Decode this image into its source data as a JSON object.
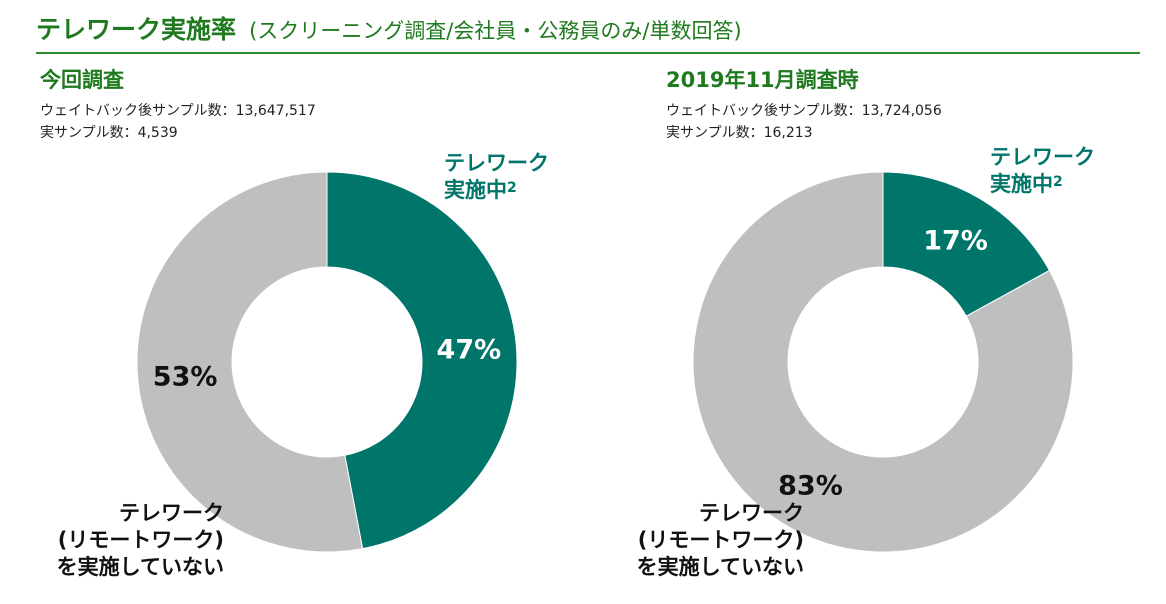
{
  "header": {
    "title": "テレワーク実施率",
    "subtitle": "(スクリーニング調査/会社員・公務員のみ/単数回答)"
  },
  "colors": {
    "telework": "#00756a",
    "not_telework": "#bfbfbf",
    "heading_green": "#1f7a1f"
  },
  "labels": {
    "telework_line1": "テレワーク",
    "telework_line2": "実施中",
    "telework_sup": "2",
    "not_line1": "テレワーク",
    "not_line2": "(リモートワーク)",
    "not_line3": "を実施していない"
  },
  "panels": [
    {
      "heading": "今回調査",
      "weighted_sample": "ウェイトバック後サンプル数：13,647,517",
      "actual_sample": "実サンプル数：4,539"
    },
    {
      "heading": "2019年11月調査時",
      "weighted_sample": "ウェイトバック後サンプル数：13,724,056",
      "actual_sample": "実サンプル数：16,213"
    }
  ],
  "chart_data": [
    {
      "type": "pie",
      "title": "今回調査",
      "categories": [
        "テレワーク実施中",
        "テレワーク(リモートワーク)を実施していない"
      ],
      "values": [
        47,
        53
      ],
      "data_labels": [
        "47%",
        "53%"
      ],
      "colors": [
        "#00756a",
        "#bfbfbf"
      ]
    },
    {
      "type": "pie",
      "title": "2019年11月調査時",
      "categories": [
        "テレワーク実施中",
        "テレワーク(リモートワーク)を実施していない"
      ],
      "values": [
        17,
        83
      ],
      "data_labels": [
        "17%",
        "83%"
      ],
      "colors": [
        "#00756a",
        "#bfbfbf"
      ]
    }
  ]
}
